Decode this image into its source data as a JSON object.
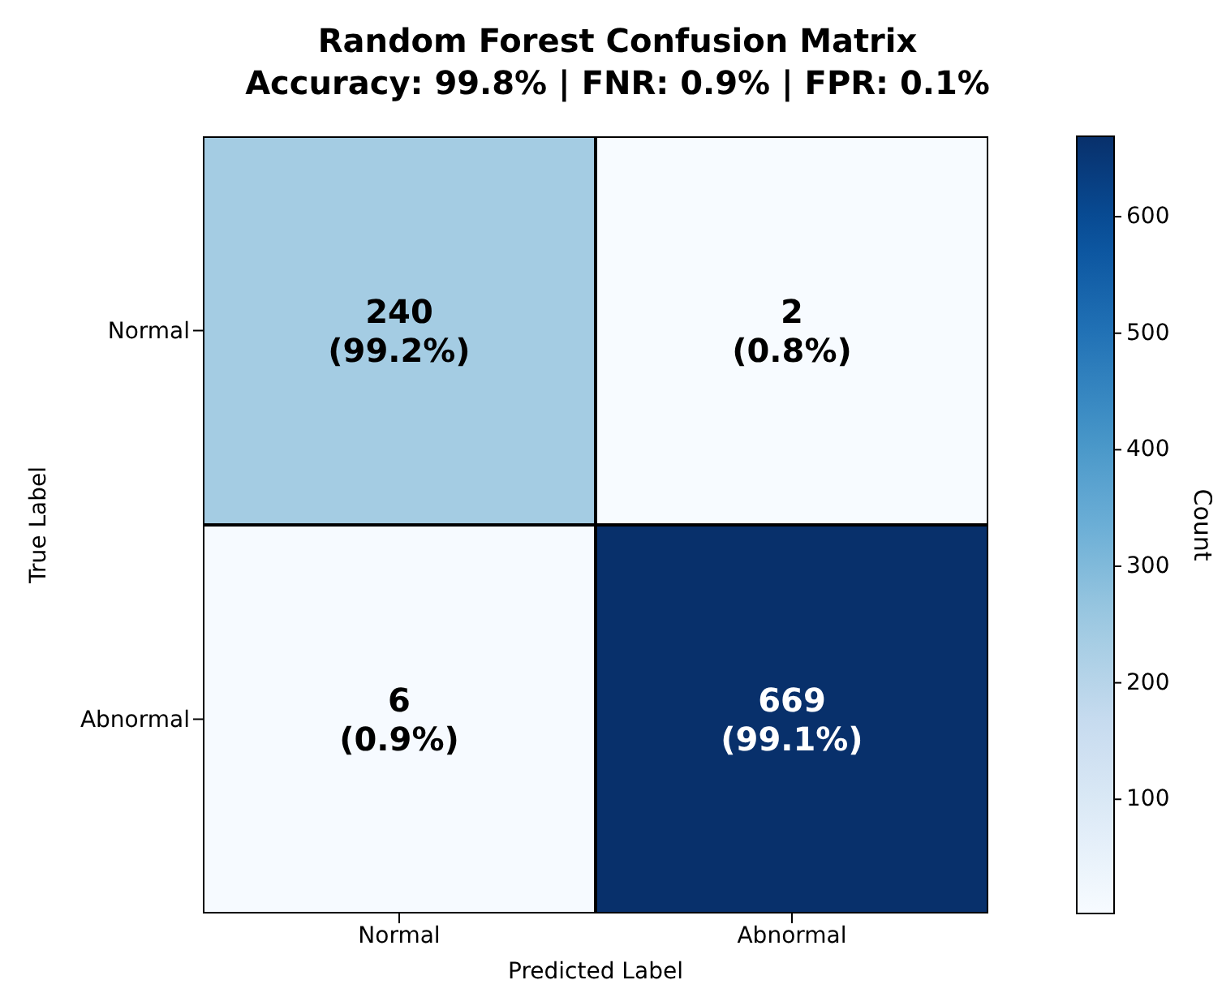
{
  "chart_data": {
    "type": "heatmap",
    "title": "Random Forest Confusion Matrix",
    "subtitle": "Accuracy: 99.8% | FNR: 0.9% | FPR: 0.1%",
    "xlabel": "Predicted Label",
    "ylabel": "True Label",
    "clabel": "Count",
    "categories": [
      "Normal",
      "Abnormal"
    ],
    "y_categories": [
      "Normal",
      "Abnormal"
    ],
    "cells": [
      [
        240,
        2
      ],
      [
        6,
        669
      ]
    ],
    "cell_labels": [
      [
        "240\n(99.2%)",
        "2\n(0.8%)"
      ],
      [
        "6\n(0.9%)",
        "669\n(99.1%)"
      ]
    ],
    "clim": [
      2,
      669
    ],
    "cticks": [
      100,
      200,
      300,
      400,
      500,
      600
    ]
  }
}
